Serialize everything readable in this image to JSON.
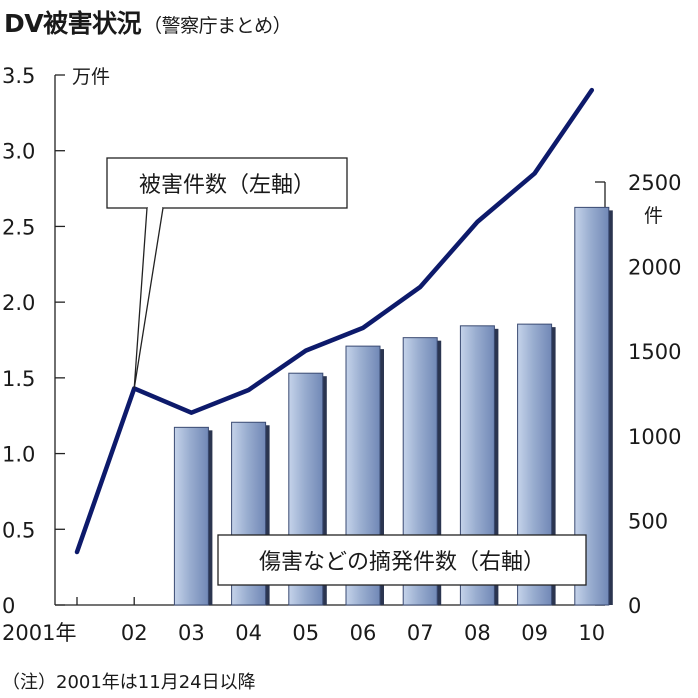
{
  "header": {
    "title": "DV被害状況",
    "subtitle": "（警察庁まとめ）"
  },
  "footnote": "（注）2001年は11月24日以降",
  "chart_data": {
    "type": "bar+line",
    "title": "DV被害状況",
    "subtitle": "（警察庁まとめ）",
    "categories": [
      "2001年",
      "02",
      "03",
      "04",
      "05",
      "06",
      "07",
      "08",
      "09",
      "10"
    ],
    "left_axis": {
      "unit": "万件",
      "ylim": [
        0,
        3.5
      ],
      "ticks": [
        "0",
        "0.5",
        "1.0",
        "1.5",
        "2.0",
        "2.5",
        "3.0",
        "3.5"
      ]
    },
    "right_axis": {
      "unit": "件",
      "ylim": [
        0,
        2500
      ],
      "ticks": [
        "0",
        "500",
        "1000",
        "1500",
        "2000",
        "2500"
      ]
    },
    "series": [
      {
        "name": "被害件数（左軸）",
        "type": "line",
        "axis": "left",
        "color": "#0d1a6b",
        "values": [
          0.35,
          1.43,
          1.27,
          1.42,
          1.68,
          1.83,
          2.1,
          2.53,
          2.85,
          3.4
        ]
      },
      {
        "name": "傷害などの摘発件数（右軸）",
        "type": "bar",
        "axis": "right",
        "color": "#9aaed0",
        "values": [
          null,
          null,
          1050,
          1080,
          1370,
          1530,
          1580,
          1650,
          1660,
          2350
        ]
      }
    ]
  }
}
